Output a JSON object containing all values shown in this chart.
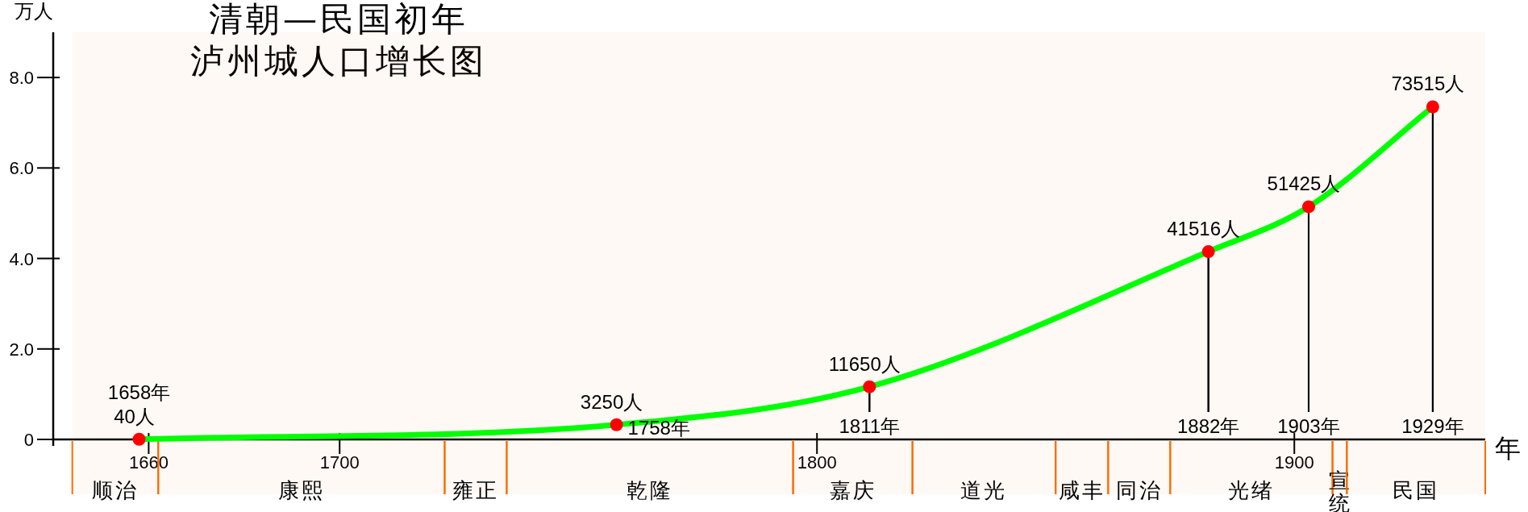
{
  "chart_data": {
    "type": "line",
    "title": "清朝—民国初年泸州城人口增长图",
    "ylabel": "万人",
    "xlabel": "年",
    "x": [
      1658,
      1758,
      1811,
      1882,
      1903,
      1929
    ],
    "series": [
      {
        "color": "#00ff00",
        "colors": [
          "#ff0000",
          "#ff0000",
          "#ff0000",
          "#ff0000",
          "#ff0000",
          "#ff0000"
        ],
        "values": [
          0.004,
          0.325,
          1.165,
          4.1516,
          5.1425,
          7.3515
        ]
      }
    ],
    "xlim": [
      1640,
      1940
    ],
    "xticks": [
      1660,
      1700,
      1800,
      1900
    ],
    "ylim": [
      0,
      9
    ],
    "yticks": [
      0,
      {
        "value": 2,
        "label": "2.0"
      },
      {
        "value": 4,
        "label": "4.0"
      },
      {
        "value": 6,
        "label": "6.0"
      },
      {
        "value": 8,
        "label": "8.0"
      }
    ],
    "annotations": [
      {
        "text": "1658年",
        "x": 1658,
        "y": 0.004
      },
      {
        "text": "1758年",
        "x": 1758,
        "y": 0.325
      },
      {
        "text": "1811年",
        "x": 1811,
        "y": 1.165
      },
      {
        "text": "1882年",
        "x": 1882,
        "y": 4.1516
      },
      {
        "text": "1903年",
        "x": 1903,
        "y": 5.1425
      },
      {
        "text": "1929年",
        "x": 1929,
        "y": 7.3515
      },
      {
        "text": "40人",
        "x": 1658,
        "y": 0.004
      },
      {
        "text": "3250人",
        "x": 1758,
        "y": 0.325
      },
      {
        "text": "11650人",
        "x": 1811,
        "y": 1.165
      },
      {
        "text": "41516人",
        "x": 1882,
        "y": 4.1516
      },
      {
        "text": "51425人",
        "x": 1903,
        "y": 5.1425
      },
      {
        "text": "73515人",
        "x": 1929,
        "y": 7.3515
      }
    ],
    "bands": [
      {
        "axis": "x",
        "from": 1644,
        "to": 1662,
        "label": "顺治",
        "color": "#ff6a00"
      },
      {
        "axis": "x",
        "from": 1662,
        "to": 1722,
        "label": "康熙",
        "color": "#ff6a00"
      },
      {
        "axis": "x",
        "from": 1722,
        "to": 1735,
        "label": "雍正",
        "color": "#ff6a00"
      },
      {
        "axis": "x",
        "from": 1735,
        "to": 1795,
        "label": "乾隆",
        "color": "#ff6a00"
      },
      {
        "axis": "x",
        "from": 1795,
        "to": 1820,
        "label": "嘉庆",
        "color": "#ff6a00"
      },
      {
        "axis": "x",
        "from": 1820,
        "to": 1850,
        "label": "道光",
        "color": "#ff6a00"
      },
      {
        "axis": "x",
        "from": 1850,
        "to": 1861,
        "label": "咸丰",
        "color": "#ff6a00"
      },
      {
        "axis": "x",
        "from": 1861,
        "to": 1874,
        "label": "同治",
        "color": "#ff6a00"
      },
      {
        "axis": "x",
        "from": 1874,
        "to": 1908,
        "label": "光绪",
        "color": "#ff6a00"
      },
      {
        "axis": "x",
        "from": 1908,
        "to": 1911,
        "label": "宣统",
        "color": "#ff6a00"
      },
      {
        "axis": "x",
        "from": 1911,
        "to": 1940,
        "label": "民国",
        "color": "#ff6a00"
      }
    ],
    "marker": "circle",
    "grid": false
  }
}
